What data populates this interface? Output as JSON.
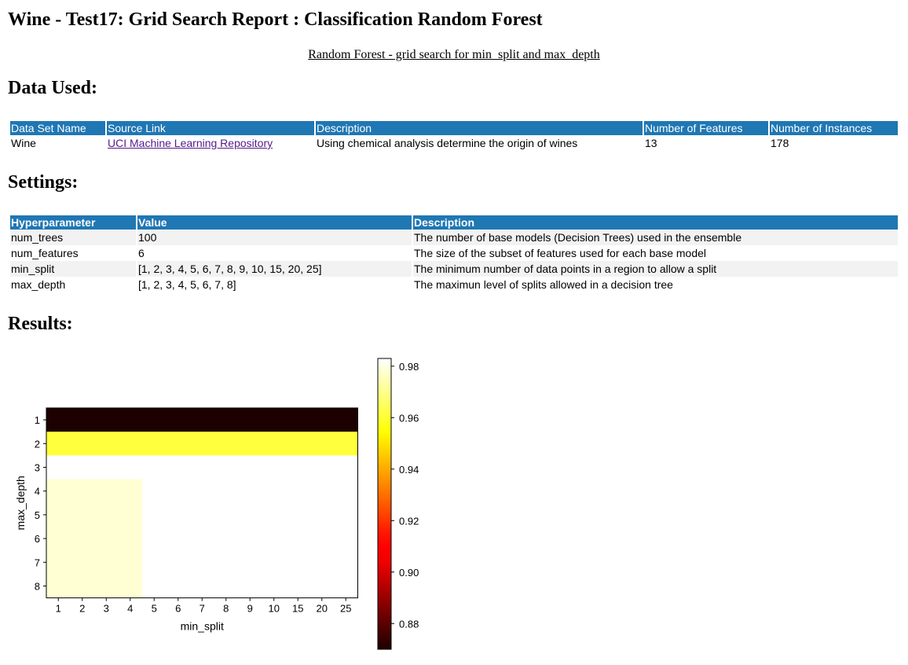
{
  "page": {
    "title": "Wine - Test17: Grid Search Report : Classification Random Forest",
    "subtitle": "Random Forest - grid search for min_split and max_depth",
    "data_heading": "Data Used:",
    "settings_heading": "Settings:",
    "results_heading": "Results:"
  },
  "data_table": {
    "headers": [
      "Data Set Name",
      "Source Link",
      "Description",
      "Number of Features",
      "Number of Instances"
    ],
    "row": {
      "name": "Wine",
      "link": "UCI Machine Learning Repository",
      "description": "Using chemical analysis determine the origin of wines",
      "features": "13",
      "instances": "178"
    }
  },
  "settings_table": {
    "headers": [
      "Hyperparameter",
      "Value",
      "Description"
    ],
    "rows": [
      {
        "param": "num_trees",
        "value": "100",
        "desc": "The number of base models (Decision Trees) used in the ensemble"
      },
      {
        "param": "num_features",
        "value": "6",
        "desc": "The size of the subset of features used for each base model"
      },
      {
        "param": "min_split",
        "value": "[1, 2, 3, 4, 5, 6, 7, 8, 9, 10, 15, 20, 25]",
        "desc": "The minimum number of data points in a region to allow a split"
      },
      {
        "param": "max_depth",
        "value": "[1, 2, 3, 4, 5, 6, 7, 8]",
        "desc": "The maximun level of splits allowed in a decision tree"
      }
    ]
  },
  "chart_data": {
    "type": "heatmap",
    "xlabel": "min_split",
    "ylabel": "max_depth",
    "x": [
      1,
      2,
      3,
      4,
      5,
      6,
      7,
      8,
      9,
      10,
      15,
      20,
      25
    ],
    "y": [
      1,
      2,
      3,
      4,
      5,
      6,
      7,
      8
    ],
    "values": [
      [
        0.87,
        0.87,
        0.87,
        0.87,
        0.87,
        0.87,
        0.87,
        0.87,
        0.87,
        0.87,
        0.87,
        0.87,
        0.87
      ],
      [
        0.961,
        0.961,
        0.961,
        0.961,
        0.961,
        0.961,
        0.961,
        0.961,
        0.961,
        0.961,
        0.961,
        0.961,
        0.961
      ],
      [
        0.983,
        0.983,
        0.983,
        0.983,
        0.983,
        0.983,
        0.983,
        0.983,
        0.983,
        0.983,
        0.983,
        0.983,
        0.983
      ],
      [
        0.978,
        0.978,
        0.978,
        0.978,
        0.983,
        0.983,
        0.983,
        0.983,
        0.983,
        0.983,
        0.983,
        0.983,
        0.983
      ],
      [
        0.978,
        0.978,
        0.978,
        0.978,
        0.983,
        0.983,
        0.983,
        0.983,
        0.983,
        0.983,
        0.983,
        0.983,
        0.983
      ],
      [
        0.978,
        0.978,
        0.978,
        0.978,
        0.983,
        0.983,
        0.983,
        0.983,
        0.983,
        0.983,
        0.983,
        0.983,
        0.983
      ],
      [
        0.978,
        0.978,
        0.978,
        0.978,
        0.983,
        0.983,
        0.983,
        0.983,
        0.983,
        0.983,
        0.983,
        0.983,
        0.983
      ],
      [
        0.978,
        0.978,
        0.978,
        0.978,
        0.983,
        0.983,
        0.983,
        0.983,
        0.983,
        0.983,
        0.983,
        0.983,
        0.983
      ]
    ],
    "colorbar": {
      "colormap": "hot",
      "range": [
        0.87,
        0.983
      ],
      "ticks": [
        0.88,
        0.9,
        0.92,
        0.94,
        0.96,
        0.98
      ],
      "tick_labels": [
        "0.88",
        "0.90",
        "0.92",
        "0.94",
        "0.96",
        "0.98"
      ]
    }
  }
}
